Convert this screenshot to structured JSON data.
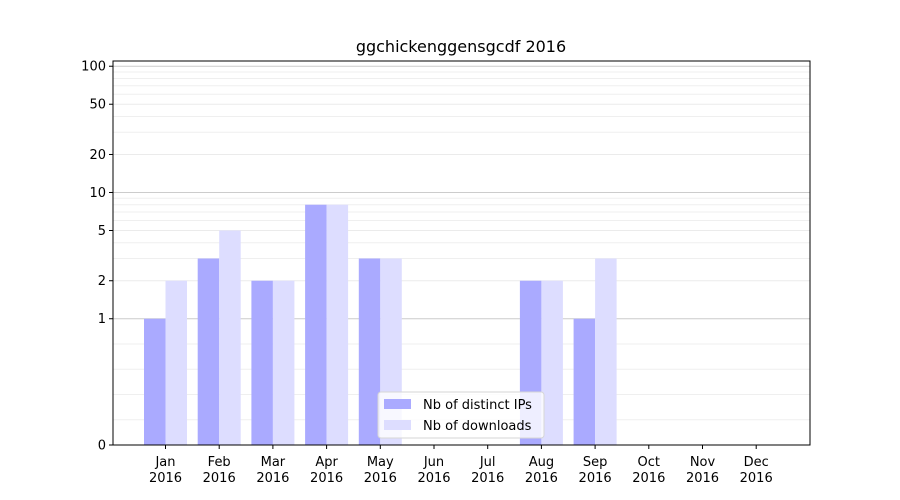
{
  "chart_data": {
    "type": "bar",
    "title": "ggchickenggensgcdf 2016",
    "xlabel": "",
    "ylabel": "",
    "yscale": "symlog",
    "ylim": [
      0,
      110
    ],
    "yticks": [
      0,
      1,
      2,
      5,
      10,
      20,
      50,
      100
    ],
    "grid": "y-minor",
    "legend_position": "bottom-center",
    "categories": [
      [
        "Jan",
        "2016"
      ],
      [
        "Feb",
        "2016"
      ],
      [
        "Mar",
        "2016"
      ],
      [
        "Apr",
        "2016"
      ],
      [
        "May",
        "2016"
      ],
      [
        "Jun",
        "2016"
      ],
      [
        "Jul",
        "2016"
      ],
      [
        "Aug",
        "2016"
      ],
      [
        "Sep",
        "2016"
      ],
      [
        "Oct",
        "2016"
      ],
      [
        "Nov",
        "2016"
      ],
      [
        "Dec",
        "2016"
      ]
    ],
    "series": [
      {
        "name": "Nb of distinct IPs",
        "color": "#aaaaff",
        "values": [
          1,
          3,
          2,
          8,
          3,
          0,
          0,
          2,
          1,
          0,
          0,
          0
        ]
      },
      {
        "name": "Nb of downloads",
        "color": "#ddddff",
        "values": [
          2,
          5,
          2,
          8,
          3,
          0,
          0,
          2,
          3,
          0,
          0,
          0
        ]
      }
    ]
  }
}
